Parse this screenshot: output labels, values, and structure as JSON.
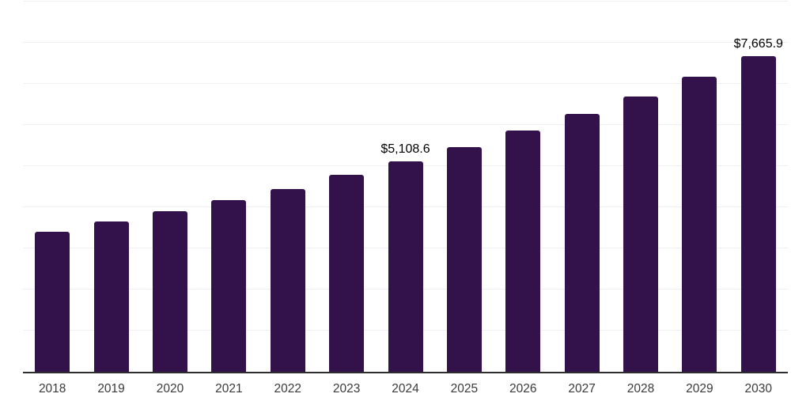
{
  "chart_data": {
    "type": "bar",
    "title": "",
    "xlabel": "",
    "ylabel": "",
    "categories": [
      "2018",
      "2019",
      "2020",
      "2021",
      "2022",
      "2023",
      "2024",
      "2025",
      "2026",
      "2027",
      "2028",
      "2029",
      "2030"
    ],
    "values": [
      3400,
      3660,
      3900,
      4180,
      4450,
      4780,
      5108.6,
      5470,
      5860,
      6270,
      6700,
      7180,
      7665.9
    ],
    "value_labels": {
      "2024": "$5,108.6",
      "2030": "$7,665.9"
    },
    "ylim": [
      0,
      9000
    ],
    "gridline_step": 1000,
    "grid": "horizontal-only",
    "y_axis_tick_labels_visible": false,
    "legend": "none",
    "palette": {
      "bar_color": "#33124b",
      "gridline_color": "#f0f0f0",
      "axis_color": "#2d2d2d",
      "tick_label_color": "#3a3a3a",
      "data_label_color": "#000000",
      "background_color": "#ffffff"
    }
  }
}
